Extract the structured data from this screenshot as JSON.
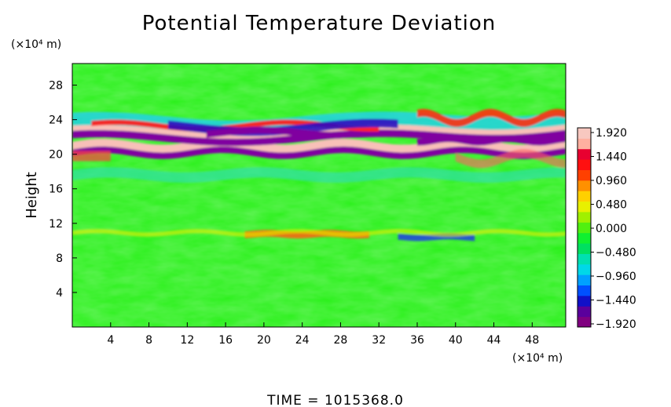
{
  "chart_data": {
    "type": "heatmap",
    "title": "Potential Temperature Deviation",
    "ylabel": "Height",
    "x_unit": "(×10⁴ m)",
    "y_unit": "(×10⁴ m)",
    "x_ticks": [
      "4",
      "8",
      "12",
      "16",
      "20",
      "24",
      "28",
      "32",
      "36",
      "40",
      "44",
      "48"
    ],
    "y_ticks": [
      "4",
      "8",
      "12",
      "16",
      "20",
      "24",
      "28"
    ],
    "xlim": [
      0,
      51.5
    ],
    "ylim": [
      0,
      30.5
    ],
    "grid": false,
    "colorbar": {
      "labels": [
        "1.920",
        "1.440",
        "0.960",
        "0.480",
        "0.000",
        "−0.480",
        "−0.960",
        "−1.440",
        "−1.920"
      ],
      "range": [
        -1.92,
        1.92
      ],
      "colors": [
        "#800080",
        "#5a009c",
        "#1010c8",
        "#0050ff",
        "#00a0ff",
        "#00d8e8",
        "#00e0b0",
        "#00e060",
        "#10f030",
        "#50f010",
        "#a0f000",
        "#e8f000",
        "#ffd000",
        "#ff9000",
        "#ff4000",
        "#ff1010",
        "#e80030",
        "#ffb0a0",
        "#f8c8c0"
      ]
    },
    "features": [
      {
        "name": "upper band",
        "y_range": [
          19.5,
          23.5
        ],
        "value": "alternating ±1.92"
      },
      {
        "name": "positive layer",
        "y_range": [
          10.5,
          11
        ],
        "x_range": [
          18,
          31
        ],
        "value": 0.9
      },
      {
        "name": "negative layer",
        "y_range": [
          10.2,
          10.6
        ],
        "x_range": [
          34,
          42
        ],
        "value": -1.2
      }
    ],
    "footer": "TIME  =  1015368.0"
  }
}
